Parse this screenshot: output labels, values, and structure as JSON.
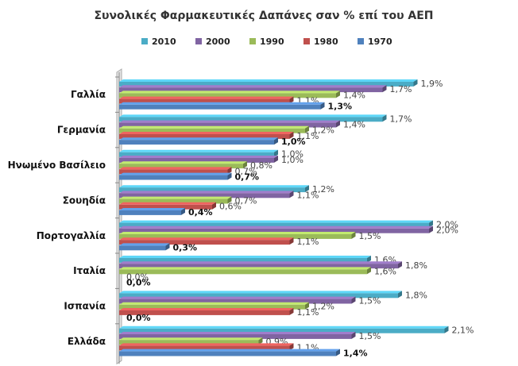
{
  "chart_data": {
    "type": "bar",
    "orientation": "horizontal",
    "title": "Συνολικές Φαρμακευτικές Δαπάνες σαν % επί του ΑΕΠ",
    "categories": [
      "Γαλλία",
      "Γερμανία",
      "Ηνωμένο Βασίλειο",
      "Σουηδία",
      "Πορτογαλλία",
      "Ιταλία",
      "Ισπανία",
      "Ελλάδα"
    ],
    "series": [
      {
        "name": "2010",
        "color": "#4BACC6",
        "values": [
          1.9,
          1.7,
          1.0,
          1.2,
          2.0,
          1.6,
          1.8,
          2.1
        ]
      },
      {
        "name": "2000",
        "color": "#8064A2",
        "values": [
          1.7,
          1.4,
          1.0,
          1.1,
          2.0,
          1.8,
          1.5,
          1.5
        ]
      },
      {
        "name": "1990",
        "color": "#9BBB59",
        "values": [
          1.4,
          1.2,
          0.8,
          0.7,
          1.5,
          1.6,
          1.2,
          0.9
        ]
      },
      {
        "name": "1980",
        "color": "#C0504D",
        "values": [
          1.1,
          1.1,
          0.7,
          0.6,
          1.1,
          0.0,
          1.1,
          1.1
        ]
      },
      {
        "name": "1970",
        "color": "#4F81BD",
        "values": [
          1.3,
          1.0,
          0.7,
          0.4,
          0.3,
          0.0,
          0.0,
          1.4
        ]
      }
    ],
    "legend_order": [
      "2010",
      "2000",
      "1990",
      "1980",
      "1970"
    ],
    "legend_position": "top",
    "xlim": [
      0,
      2.2
    ],
    "value_format": "%",
    "bold_series": "1970",
    "grid": false
  }
}
